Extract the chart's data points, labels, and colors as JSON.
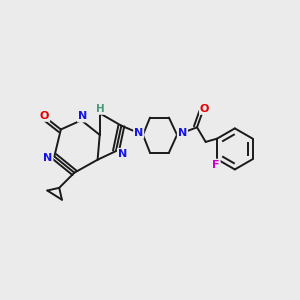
{
  "bg_color": "#ebebeb",
  "bond_color": "#1a1a1a",
  "N_color": "#1414e6",
  "O_color": "#e60000",
  "F_color": "#cc00cc",
  "H_color": "#4a9a7a",
  "line_width": 1.4,
  "figsize": [
    3.0,
    3.0
  ],
  "dpi": 100,
  "xlim": [
    0.0,
    5.5
  ],
  "ylim": [
    0.5,
    4.5
  ]
}
